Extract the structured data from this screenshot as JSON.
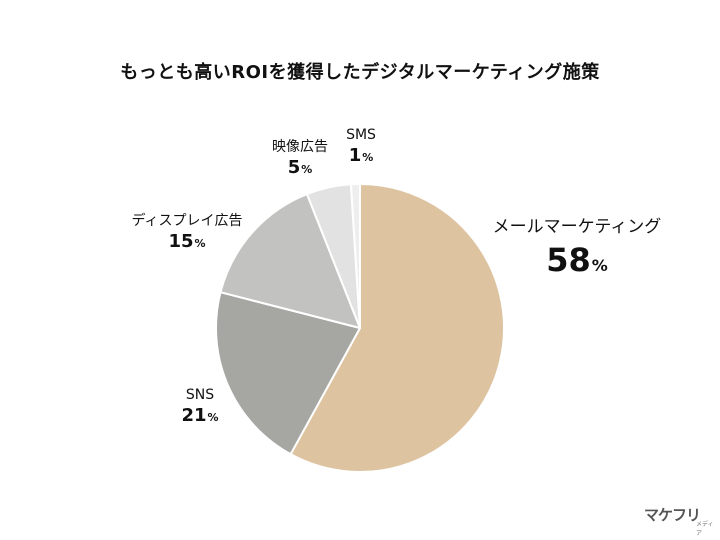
{
  "chart_data": {
    "type": "pie",
    "title": "もっとも高いROIを獲得したデジタルマーケティング施策",
    "unit": "%",
    "start": "12 o'clock",
    "direction": "clockwise",
    "slices": [
      {
        "label": "メールマーケティング",
        "value": 58,
        "color": "#dec3a1"
      },
      {
        "label": "SNS",
        "value": 21,
        "color": "#a6a7a3"
      },
      {
        "label": "ディスプレイ広告",
        "value": 15,
        "color": "#c2c3c0"
      },
      {
        "label": "映像広告",
        "value": 5,
        "color": "#e2e2e2"
      },
      {
        "label": "SMS",
        "value": 1,
        "color": "#eeeeee"
      }
    ]
  },
  "labels": [
    {
      "name": "メールマーケティング",
      "value": "58",
      "unit": "%"
    },
    {
      "name": "SNS",
      "value": "21",
      "unit": "%"
    },
    {
      "name": "ディスプレイ広告",
      "value": "15",
      "unit": "%"
    },
    {
      "name": "映像広告",
      "value": "5",
      "unit": "%"
    },
    {
      "name": "SMS",
      "value": "1",
      "unit": "%"
    }
  ],
  "logo": {
    "main": "マケフリ",
    "sub": "メディア"
  }
}
